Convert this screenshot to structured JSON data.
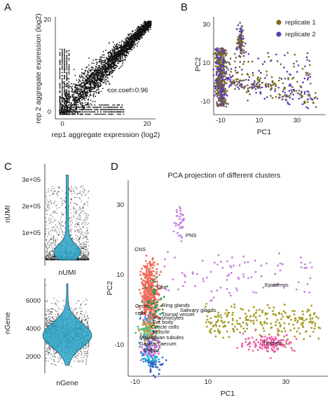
{
  "panels": {
    "a": "A",
    "b": "B",
    "c": "C",
    "d": "D"
  },
  "colors": {
    "rep1": "#7a6a1a",
    "rep2": "#5a3fb2",
    "violin": "#2aa3c8",
    "clusters": {
      "CNS": "#ef6b5b",
      "PNS": "#c77ee0",
      "Epidermis": "#a59a22",
      "Trachea": "#ec5fa6",
      "Glia": "#1e9a4b",
      "Germ cells": "#4e8fcf",
      "Ring glands": "#e0a038",
      "Salivary glands": "#7fb84a",
      "Plasmocytes": "#3fc0b4",
      "Dorsal vessel": "#d38a3a",
      "Fat body": "#6c8bd1",
      "Cuticle cells": "#b36bd0",
      "Muscle": "#e56ac8",
      "Malpighian tubules": "#3b7fd1",
      "Gastric caecum": "#1fb8d8",
      "Midgut": "#2f5fbf"
    }
  },
  "chart_data": [
    {
      "id": "A",
      "type": "scatter",
      "xlabel": "rep1 aggregate expression (log2)",
      "ylabel": "rep 2 aggregate expression (log2)",
      "xlim": [
        -1,
        21
      ],
      "ylim": [
        -1,
        21
      ],
      "xticks": [
        "0",
        "20"
      ],
      "yticks": [
        "0",
        "20"
      ],
      "annotation": "cor.coef=0.96",
      "correlation": 0.96,
      "trend": {
        "slope": 1.0,
        "intercept": 0.0
      }
    },
    {
      "id": "B",
      "type": "scatter",
      "xlabel": "PC1",
      "ylabel": "PC2",
      "xlim": [
        -12,
        42
      ],
      "ylim": [
        -16,
        34
      ],
      "xticks": [
        "-10",
        "10",
        "30"
      ],
      "yticks": [
        "-10",
        "10",
        "30"
      ],
      "series": [
        {
          "name": "replicate 1"
        },
        {
          "name": "replicate 2"
        }
      ],
      "legend": "top-right"
    },
    {
      "id": "C-nUMI",
      "type": "violin",
      "ylabel": "nUMI",
      "xlabel": "nUMI",
      "ylim": [
        -20000,
        340000
      ],
      "yticks": [
        "1e+05",
        "2e+05",
        "3e+05"
      ],
      "median": 8000
    },
    {
      "id": "C-nGene",
      "type": "violin",
      "ylabel": "nGene",
      "xlabel": "nGene",
      "ylim": [
        900,
        7900
      ],
      "yticks": [
        "2000",
        "4000",
        "6000"
      ],
      "median": 3800
    },
    {
      "id": "D",
      "type": "scatter",
      "title": "PCA projection of different clusters",
      "xlabel": "PC1",
      "ylabel": "PC2",
      "xlim": [
        -13,
        42
      ],
      "ylim": [
        -16,
        37
      ],
      "xticks": [
        "-10",
        "10",
        "30"
      ],
      "yticks": [
        "-10",
        "10",
        "30"
      ],
      "clusters": [
        "CNS",
        "PNS",
        "Glia",
        "Epidermis",
        "Trachea",
        "Germ cells",
        "Ring glands",
        "Salivary glands",
        "Plasmocytes",
        "Dorsal vessel",
        "Fat body",
        "Cuticle cells",
        "Muscle",
        "Malpighian tubules",
        "Gastric caecum",
        "Midgut"
      ],
      "labels": {
        "CNS": "CNS",
        "PNS": "PNS",
        "Glia": "Glia",
        "Epidermis": "Epidermis",
        "Trachea": "Trachea",
        "Germ": "Germ",
        "cells": "cells",
        "Ring glands": "Ring glands",
        "Salivary glands": "Salivary glands",
        "Dorsal vessel": "Dorsal vessel",
        "Plasmocytes": "Plasmocytes",
        "Fat body": "Fat body",
        "Cuticle cells": "Cuticle cells",
        "Muscle": "Muscle",
        "Malpighian tubules": "Malpighian tubules",
        "Gastric caecum": "Gastric caecum",
        "Midgut": "Midgut"
      }
    }
  ]
}
